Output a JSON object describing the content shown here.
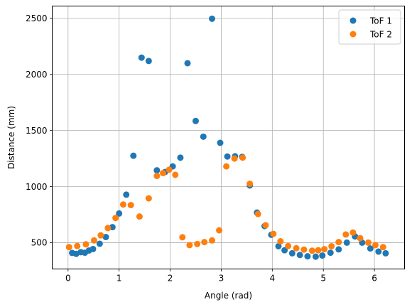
{
  "chart_data": {
    "type": "scatter",
    "title": "",
    "xlabel": "Angle (rad)",
    "ylabel": "Distance (mm)",
    "xlim": [
      -0.31,
      6.59
    ],
    "ylim": [
      265,
      2610
    ],
    "xticks": [
      0,
      1,
      2,
      3,
      4,
      5,
      6
    ],
    "yticks": [
      500,
      1000,
      1500,
      2000,
      2500
    ],
    "grid": true,
    "legend": "upper-right",
    "series": [
      {
        "name": "ToF 1",
        "color": "#1f77b4",
        "points": [
          [
            0.08,
            408
          ],
          [
            0.16,
            400
          ],
          [
            0.25,
            415
          ],
          [
            0.33,
            410
          ],
          [
            0.41,
            430
          ],
          [
            0.49,
            443
          ],
          [
            0.62,
            490
          ],
          [
            0.74,
            550
          ],
          [
            0.87,
            638
          ],
          [
            1.0,
            760
          ],
          [
            1.14,
            928
          ],
          [
            1.28,
            1275
          ],
          [
            1.44,
            2150
          ],
          [
            1.58,
            2120
          ],
          [
            1.74,
            1145
          ],
          [
            1.9,
            1130
          ],
          [
            2.05,
            1180
          ],
          [
            2.2,
            1258
          ],
          [
            2.34,
            2100
          ],
          [
            2.5,
            1585
          ],
          [
            2.65,
            1445
          ],
          [
            2.82,
            2497
          ],
          [
            2.98,
            1390
          ],
          [
            3.12,
            1268
          ],
          [
            3.27,
            1270
          ],
          [
            3.41,
            1265
          ],
          [
            3.56,
            1010
          ],
          [
            3.7,
            768
          ],
          [
            3.85,
            648
          ],
          [
            3.98,
            570
          ],
          [
            4.12,
            468
          ],
          [
            4.24,
            432
          ],
          [
            4.39,
            405
          ],
          [
            4.54,
            390
          ],
          [
            4.69,
            378
          ],
          [
            4.85,
            375
          ],
          [
            4.98,
            385
          ],
          [
            5.14,
            410
          ],
          [
            5.3,
            440
          ],
          [
            5.46,
            500
          ],
          [
            5.62,
            555
          ],
          [
            5.76,
            500
          ],
          [
            5.92,
            448
          ],
          [
            6.08,
            420
          ],
          [
            6.22,
            405
          ]
        ]
      },
      {
        "name": "ToF 2",
        "color": "#ff7f0e",
        "points": [
          [
            0.02,
            460
          ],
          [
            0.18,
            470
          ],
          [
            0.35,
            485
          ],
          [
            0.51,
            520
          ],
          [
            0.64,
            565
          ],
          [
            0.78,
            630
          ],
          [
            0.93,
            720
          ],
          [
            1.08,
            840
          ],
          [
            1.23,
            835
          ],
          [
            1.4,
            733
          ],
          [
            1.58,
            895
          ],
          [
            1.74,
            1095
          ],
          [
            1.86,
            1120
          ],
          [
            1.98,
            1150
          ],
          [
            2.1,
            1105
          ],
          [
            2.24,
            548
          ],
          [
            2.38,
            478
          ],
          [
            2.53,
            488
          ],
          [
            2.67,
            505
          ],
          [
            2.82,
            520
          ],
          [
            2.96,
            610
          ],
          [
            3.1,
            1180
          ],
          [
            3.26,
            1250
          ],
          [
            3.42,
            1258
          ],
          [
            3.56,
            1025
          ],
          [
            3.72,
            755
          ],
          [
            3.87,
            655
          ],
          [
            4.02,
            578
          ],
          [
            4.16,
            512
          ],
          [
            4.31,
            470
          ],
          [
            4.47,
            450
          ],
          [
            4.62,
            438
          ],
          [
            4.78,
            428
          ],
          [
            4.9,
            432
          ],
          [
            5.02,
            442
          ],
          [
            5.16,
            468
          ],
          [
            5.3,
            505
          ],
          [
            5.44,
            572
          ],
          [
            5.58,
            590
          ],
          [
            5.72,
            540
          ],
          [
            5.88,
            500
          ],
          [
            6.02,
            478
          ],
          [
            6.17,
            460
          ]
        ]
      }
    ]
  }
}
